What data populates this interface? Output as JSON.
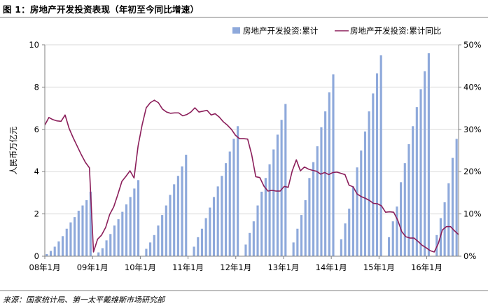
{
  "title": "图 1：房地产开发投资表现（年初至今同比增速）",
  "source": "来源：国家统计局、第一太平戴维斯市场研究部",
  "chart_data": {
    "type": "bar+line",
    "title": "图 1：房地产开发投资表现（年初至今同比增速）",
    "ylabel": "人民币万亿元",
    "ylim": [
      0,
      10
    ],
    "y2lim": [
      0,
      50
    ],
    "y_ticks": [
      "0",
      "2",
      "4",
      "6",
      "8",
      "10"
    ],
    "y2_ticks": [
      "0%",
      "10%",
      "20%",
      "30%",
      "40%",
      "50%"
    ],
    "x_ticks": [
      "08年1月",
      "09年1月",
      "10年1月",
      "11年1月",
      "12年1月",
      "13年1月",
      "14年1月",
      "15年1月",
      "16年1月"
    ],
    "grid": "horizontal",
    "legend_position": "top-right",
    "colors": {
      "bar": "#8ea9db",
      "line": "#8b1e5a"
    },
    "series": [
      {
        "name": "房地产开发投资:累计",
        "type": "bar",
        "axis": "left",
        "values": [
          0.1,
          0.25,
          0.45,
          0.7,
          0.95,
          1.3,
          1.6,
          1.85,
          2.15,
          2.4,
          2.65,
          3.05,
          0,
          0.18,
          0.38,
          0.75,
          1.05,
          1.45,
          1.75,
          2.1,
          2.45,
          2.8,
          3.2,
          3.6,
          0,
          0.35,
          0.65,
          1.0,
          1.45,
          1.95,
          2.4,
          2.9,
          3.4,
          3.8,
          4.25,
          4.8,
          0,
          0.45,
          0.9,
          1.3,
          1.8,
          2.3,
          2.8,
          3.3,
          3.8,
          4.4,
          4.95,
          5.55,
          6.15,
          0,
          0.55,
          1.1,
          1.65,
          2.4,
          3.05,
          3.7,
          4.35,
          5.05,
          5.75,
          6.45,
          7.2,
          0,
          0.65,
          1.3,
          1.95,
          2.65,
          3.7,
          4.45,
          5.2,
          6.1,
          6.85,
          7.75,
          8.6,
          0,
          0.8,
          1.55,
          2.25,
          3.3,
          4.2,
          5.0,
          5.9,
          6.85,
          7.7,
          8.65,
          9.5,
          0,
          0.9,
          1.65,
          2.35,
          3.5,
          4.4,
          5.3,
          6.15,
          7.05,
          7.9,
          8.75,
          9.6,
          0,
          1.0,
          1.8,
          2.55,
          3.45,
          4.65,
          5.55
        ]
      },
      {
        "name": "房地产开发投资:累计同比",
        "type": "line",
        "axis": "right",
        "values": [
          31,
          32.8,
          32.3,
          32.0,
          31.9,
          33.4,
          30.2,
          28.0,
          26.0,
          24.0,
          22.2,
          20.9,
          1.0,
          4.0,
          5.0,
          6.8,
          9.9,
          11.7,
          14.6,
          17.7,
          18.9,
          20.2,
          18.5,
          26.1,
          31.1,
          35.1,
          36.3,
          36.9,
          36.3,
          34.8,
          34.1,
          33.8,
          33.9,
          33.9,
          33.2,
          33.5,
          34.1,
          35.1,
          34.1,
          34.3,
          34.5,
          33.4,
          33.7,
          32.9,
          31.8,
          31.0,
          30.0,
          28.6,
          27.8,
          27.8,
          27.7,
          24.0,
          18.8,
          18.6,
          16.6,
          15.4,
          15.6,
          15.4,
          15.4,
          16.5,
          16.3,
          20.2,
          22.8,
          20.2,
          21.1,
          20.6,
          20.3,
          20.1,
          19.4,
          19.8,
          19.3,
          19.8,
          19.9,
          19.6,
          19.3,
          16.8,
          16.4,
          14.7,
          14.1,
          13.7,
          13.2,
          12.5,
          12.4,
          11.9,
          10.4,
          10.5,
          10.4,
          8.5,
          5.8,
          4.6,
          4.3,
          4.3,
          3.5,
          2.6,
          2.0,
          1.3,
          1.0,
          3.0,
          6.2,
          7.0,
          7.0,
          6.0,
          5.1
        ]
      }
    ]
  }
}
